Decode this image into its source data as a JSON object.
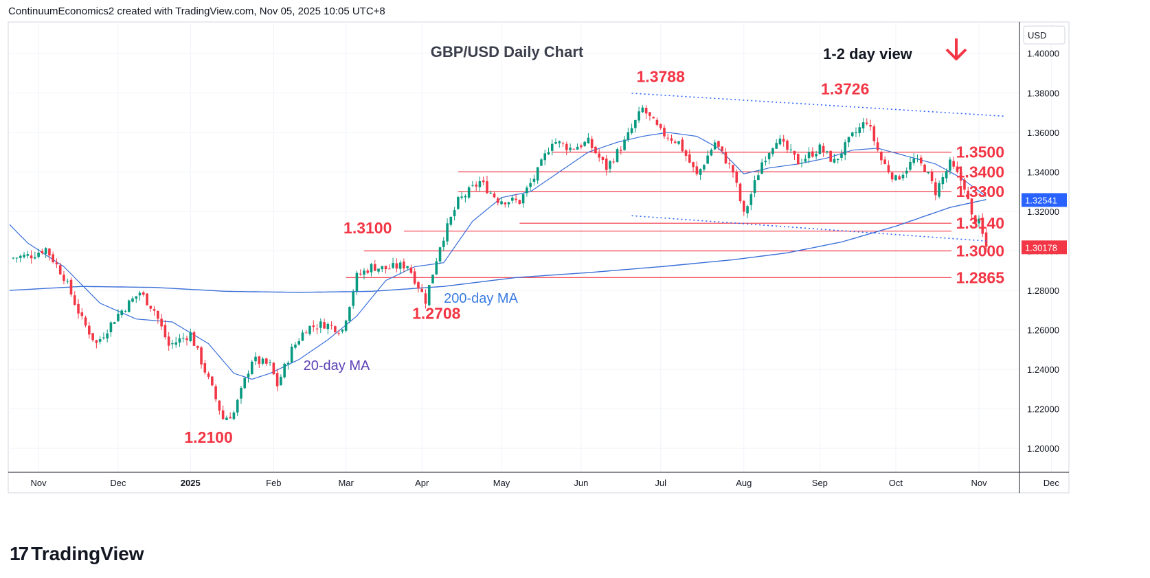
{
  "header": {
    "credit": "ContinuumEconomics2 created with TradingView.com, Nov 05, 2025 10:05 UTC+8"
  },
  "footer": {
    "brand": "TradingView"
  },
  "colors": {
    "up": "#089981",
    "down": "#f23645",
    "ma20": "#5b3fb5",
    "ma200": "#3a6fd8",
    "level": "#f23645",
    "trend": "#2962ff",
    "grid": "#f0f3fa"
  },
  "chart_data": {
    "type": "candlestick",
    "title": "GBP/USD Daily Chart",
    "view_label": "1-2 day view",
    "view_direction_icon": "arrow-down-icon",
    "currency": "USD",
    "last_price": "1.30178",
    "overlap_label": "1.32541",
    "y_ticks": [
      "1.40000",
      "1.38000",
      "1.36000",
      "1.34000",
      "1.32000",
      "1.30000",
      "1.28000",
      "1.26000",
      "1.24000",
      "1.22000",
      "1.20000"
    ],
    "ylim": [
      1.1879,
      1.4159
    ],
    "x_ticks": [
      {
        "label": "Nov",
        "idx": 8
      },
      {
        "label": "Dec",
        "idx": 30
      },
      {
        "label": "2025",
        "idx": 50
      },
      {
        "label": "Feb",
        "idx": 73
      },
      {
        "label": "Mar",
        "idx": 93
      },
      {
        "label": "Apr",
        "idx": 114
      },
      {
        "label": "May",
        "idx": 136
      },
      {
        "label": "Jun",
        "idx": 158
      },
      {
        "label": "Jul",
        "idx": 180
      },
      {
        "label": "Aug",
        "idx": 203
      },
      {
        "label": "Sep",
        "idx": 224
      },
      {
        "label": "Oct",
        "idx": 245
      },
      {
        "label": "Nov",
        "idx": 268
      },
      {
        "label": "Dec",
        "idx": 288
      }
    ],
    "anchors": [
      {
        "i": 0,
        "v": 1.2963
      },
      {
        "i": 6,
        "v": 1.2978
      },
      {
        "i": 10,
        "v": 1.3012
      },
      {
        "i": 15,
        "v": 1.287
      },
      {
        "i": 20,
        "v": 1.265
      },
      {
        "i": 24,
        "v": 1.253
      },
      {
        "i": 30,
        "v": 1.268
      },
      {
        "i": 36,
        "v": 1.279
      },
      {
        "i": 40,
        "v": 1.27
      },
      {
        "i": 44,
        "v": 1.252
      },
      {
        "i": 50,
        "v": 1.258
      },
      {
        "i": 56,
        "v": 1.23
      },
      {
        "i": 59,
        "v": 1.215
      },
      {
        "i": 62,
        "v": 1.218
      },
      {
        "i": 67,
        "v": 1.245
      },
      {
        "i": 72,
        "v": 1.242
      },
      {
        "i": 74,
        "v": 1.232
      },
      {
        "i": 78,
        "v": 1.25
      },
      {
        "i": 82,
        "v": 1.261
      },
      {
        "i": 87,
        "v": 1.263
      },
      {
        "i": 92,
        "v": 1.26
      },
      {
        "i": 96,
        "v": 1.287
      },
      {
        "i": 100,
        "v": 1.292
      },
      {
        "i": 104,
        "v": 1.291
      },
      {
        "i": 110,
        "v": 1.293
      },
      {
        "i": 115,
        "v": 1.275
      },
      {
        "i": 119,
        "v": 1.303
      },
      {
        "i": 124,
        "v": 1.325
      },
      {
        "i": 130,
        "v": 1.335
      },
      {
        "i": 135,
        "v": 1.326
      },
      {
        "i": 141,
        "v": 1.325
      },
      {
        "i": 146,
        "v": 1.34
      },
      {
        "i": 150,
        "v": 1.356
      },
      {
        "i": 155,
        "v": 1.352
      },
      {
        "i": 160,
        "v": 1.355
      },
      {
        "i": 165,
        "v": 1.342
      },
      {
        "i": 170,
        "v": 1.355
      },
      {
        "i": 175,
        "v": 1.372
      },
      {
        "i": 180,
        "v": 1.36
      },
      {
        "i": 185,
        "v": 1.355
      },
      {
        "i": 190,
        "v": 1.338
      },
      {
        "i": 195,
        "v": 1.355
      },
      {
        "i": 200,
        "v": 1.34
      },
      {
        "i": 203,
        "v": 1.318
      },
      {
        "i": 208,
        "v": 1.345
      },
      {
        "i": 212,
        "v": 1.357
      },
      {
        "i": 218,
        "v": 1.345
      },
      {
        "i": 224,
        "v": 1.352
      },
      {
        "i": 228,
        "v": 1.345
      },
      {
        "i": 233,
        "v": 1.358
      },
      {
        "i": 237,
        "v": 1.366
      },
      {
        "i": 241,
        "v": 1.346
      },
      {
        "i": 245,
        "v": 1.336
      },
      {
        "i": 250,
        "v": 1.346
      },
      {
        "i": 253,
        "v": 1.342
      },
      {
        "i": 256,
        "v": 1.33
      },
      {
        "i": 260,
        "v": 1.344
      },
      {
        "i": 264,
        "v": 1.333
      },
      {
        "i": 266,
        "v": 1.317
      },
      {
        "i": 268,
        "v": 1.314
      },
      {
        "i": 270,
        "v": 1.3018
      }
    ],
    "ma20": [
      {
        "i": 0,
        "v": 1.3133
      },
      {
        "i": 5,
        "v": 1.304
      },
      {
        "i": 15,
        "v": 1.292
      },
      {
        "i": 25,
        "v": 1.2735
      },
      {
        "i": 35,
        "v": 1.2655
      },
      {
        "i": 45,
        "v": 1.264
      },
      {
        "i": 55,
        "v": 1.253
      },
      {
        "i": 62,
        "v": 1.238
      },
      {
        "i": 67,
        "v": 1.235
      },
      {
        "i": 72,
        "v": 1.238
      },
      {
        "i": 80,
        "v": 1.245
      },
      {
        "i": 88,
        "v": 1.255
      },
      {
        "i": 96,
        "v": 1.267
      },
      {
        "i": 104,
        "v": 1.285
      },
      {
        "i": 112,
        "v": 1.292
      },
      {
        "i": 120,
        "v": 1.294
      },
      {
        "i": 128,
        "v": 1.315
      },
      {
        "i": 136,
        "v": 1.327
      },
      {
        "i": 144,
        "v": 1.33
      },
      {
        "i": 152,
        "v": 1.34
      },
      {
        "i": 160,
        "v": 1.35
      },
      {
        "i": 168,
        "v": 1.355
      },
      {
        "i": 175,
        "v": 1.358
      },
      {
        "i": 182,
        "v": 1.36
      },
      {
        "i": 190,
        "v": 1.358
      },
      {
        "i": 196,
        "v": 1.352
      },
      {
        "i": 203,
        "v": 1.339
      },
      {
        "i": 210,
        "v": 1.342
      },
      {
        "i": 218,
        "v": 1.344
      },
      {
        "i": 226,
        "v": 1.347
      },
      {
        "i": 233,
        "v": 1.351
      },
      {
        "i": 240,
        "v": 1.352
      },
      {
        "i": 248,
        "v": 1.348
      },
      {
        "i": 256,
        "v": 1.344
      },
      {
        "i": 263,
        "v": 1.337
      },
      {
        "i": 270,
        "v": 1.3275
      }
    ],
    "ma200": [
      {
        "i": 0,
        "v": 1.28
      },
      {
        "i": 20,
        "v": 1.282
      },
      {
        "i": 40,
        "v": 1.2815
      },
      {
        "i": 60,
        "v": 1.2795
      },
      {
        "i": 80,
        "v": 1.279
      },
      {
        "i": 100,
        "v": 1.2795
      },
      {
        "i": 120,
        "v": 1.282
      },
      {
        "i": 140,
        "v": 1.2865
      },
      {
        "i": 160,
        "v": 1.289
      },
      {
        "i": 180,
        "v": 1.292
      },
      {
        "i": 200,
        "v": 1.2955
      },
      {
        "i": 215,
        "v": 1.299
      },
      {
        "i": 230,
        "v": 1.3045
      },
      {
        "i": 245,
        "v": 1.3125
      },
      {
        "i": 260,
        "v": 1.322
      },
      {
        "i": 270,
        "v": 1.326
      }
    ],
    "levels": [
      {
        "label": "1.3500",
        "value": 1.35,
        "start_idx": 150
      },
      {
        "label": "1.3400",
        "value": 1.34,
        "start_idx": 124
      },
      {
        "label": "1.3300",
        "value": 1.33,
        "start_idx": 124
      },
      {
        "label": "1.3140",
        "value": 1.314,
        "start_idx": 141
      },
      {
        "label": "1.3000",
        "value": 1.3,
        "start_idx": 98
      },
      {
        "label": "1.2865",
        "value": 1.2865,
        "start_idx": 93
      }
    ],
    "level_1310": {
      "value": 1.31,
      "start_idx": 109
    },
    "trendlines": [
      {
        "x1": 172,
        "y1": 1.3798,
        "x2": 275,
        "y2": 1.3682
      },
      {
        "x1": 172,
        "y1": 1.3178,
        "x2": 270,
        "y2": 1.305
      }
    ],
    "annotations": [
      {
        "label": "1.3788",
        "x": 180,
        "y": 1.3855
      },
      {
        "label": "1.3726",
        "x": 231,
        "y": 1.3792
      },
      {
        "label": "1.3100",
        "x": 99,
        "y": 1.3089
      },
      {
        "label": "1.2708",
        "x": 118,
        "y": 1.2655
      },
      {
        "label": "1.2100",
        "x": 55,
        "y": 1.2028
      }
    ],
    "ma_labels": {
      "ma200": "200-day MA",
      "ma20": "20-day MA"
    }
  }
}
